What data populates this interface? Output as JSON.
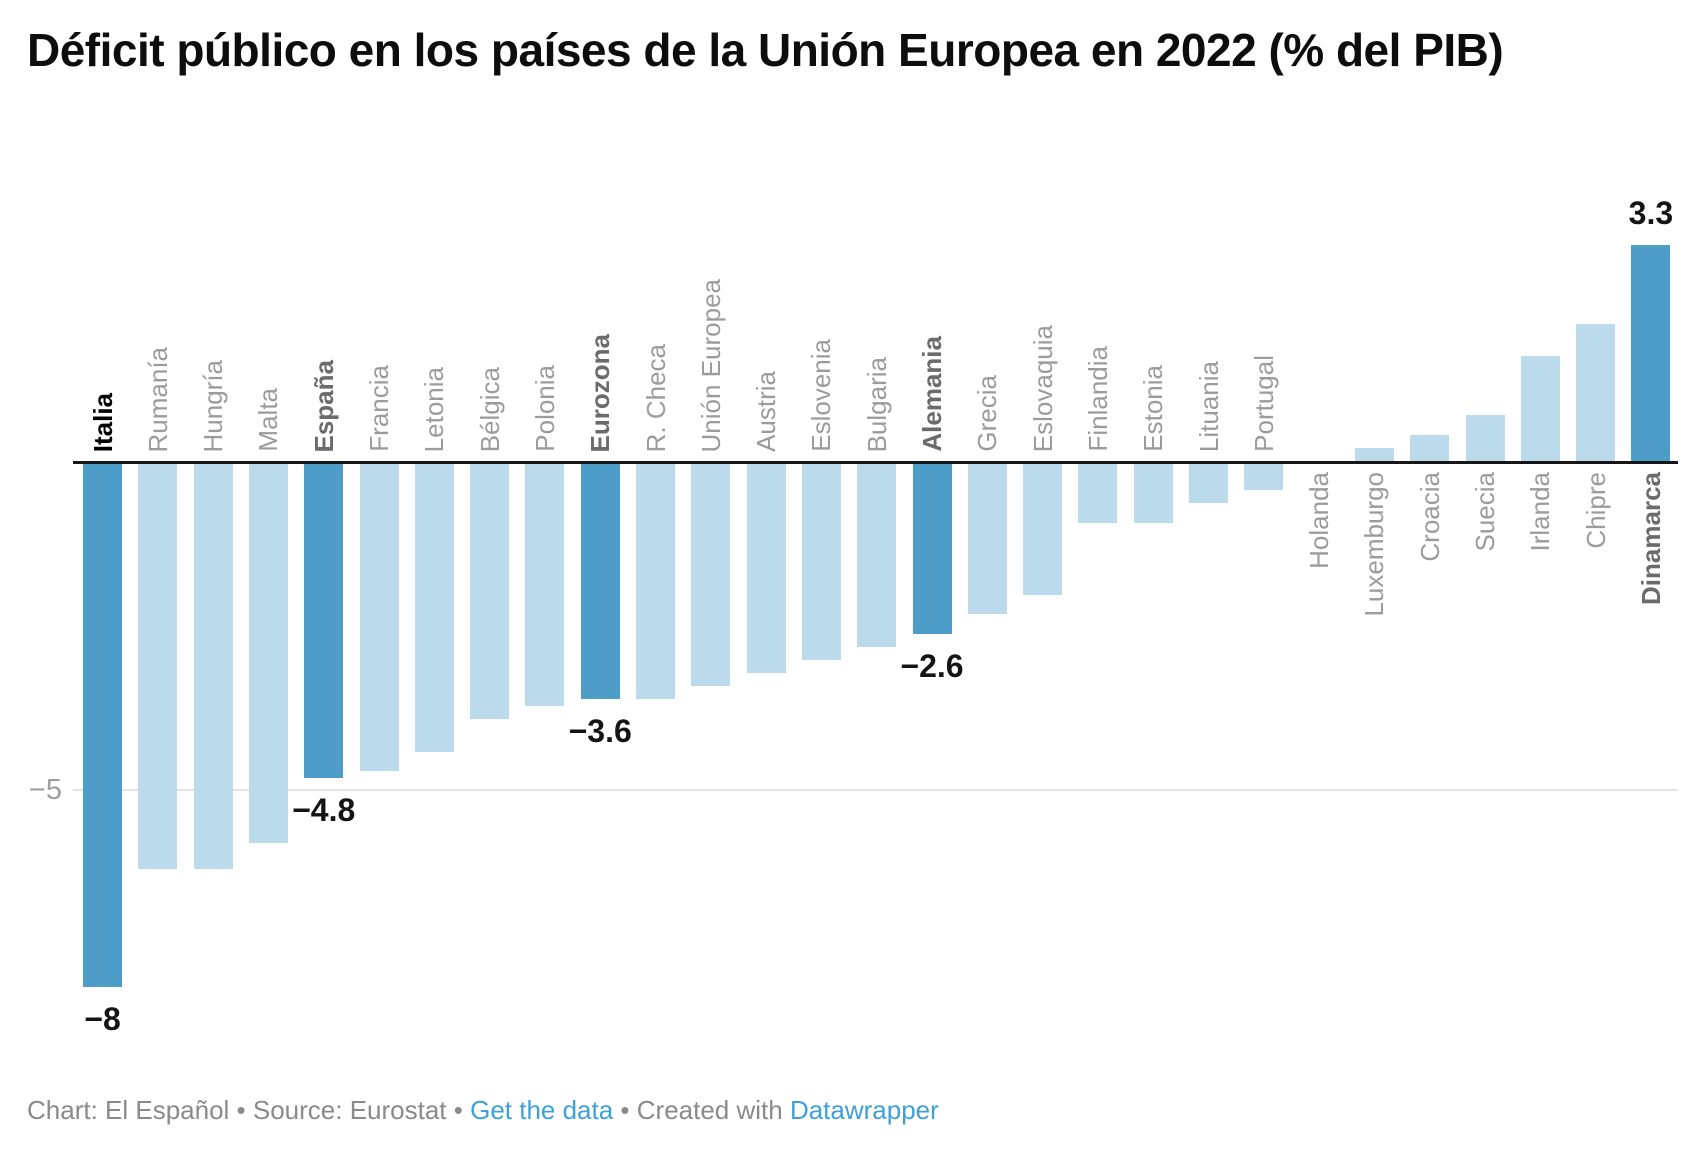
{
  "header": {
    "title": "Déficit público en los países de la Unión Europea en 2022 (% del PIB)"
  },
  "footer": {
    "part1": "Chart: El Español • Source: Eurostat • ",
    "link1": "Get the data",
    "part2": " • Created with ",
    "link2": "Datawrapper"
  },
  "chart_data": {
    "type": "bar",
    "title": "Déficit público en los países de la Unión Europea en 2022 (% del PIB)",
    "xlabel": "",
    "ylabel": "% del PIB",
    "ylim": [
      -8.6,
      3.8
    ],
    "grid": "horizontal",
    "legend_position": "none",
    "axis_ticks": [
      {
        "value": -5,
        "label": "−5"
      }
    ],
    "colors": {
      "bar": "#BBDBEC",
      "bar_highlight": "#4E9CC8",
      "axis": "#161616",
      "gridline": "#E4E4E4",
      "label_gray": "#9B9B9B",
      "label_bold_gray": "#6B6B6B",
      "value_label": "#141414",
      "link_blue": "#3DA0D8"
    },
    "bars": [
      {
        "name": "Italia",
        "value": -8.0,
        "highlight": true,
        "value_label": "−8",
        "name_style": "black"
      },
      {
        "name": "Rumanía",
        "value": -6.2,
        "highlight": false,
        "value_label": "",
        "name_style": "normal"
      },
      {
        "name": "Hungría",
        "value": -6.2,
        "highlight": false,
        "value_label": "",
        "name_style": "normal"
      },
      {
        "name": "Malta",
        "value": -5.8,
        "highlight": false,
        "value_label": "",
        "name_style": "normal"
      },
      {
        "name": "España",
        "value": -4.8,
        "highlight": true,
        "value_label": "−4.8",
        "name_style": "bold"
      },
      {
        "name": "Francia",
        "value": -4.7,
        "highlight": false,
        "value_label": "",
        "name_style": "normal"
      },
      {
        "name": "Letonia",
        "value": -4.4,
        "highlight": false,
        "value_label": "",
        "name_style": "normal"
      },
      {
        "name": "Bélgica",
        "value": -3.9,
        "highlight": false,
        "value_label": "",
        "name_style": "normal"
      },
      {
        "name": "Polonia",
        "value": -3.7,
        "highlight": false,
        "value_label": "",
        "name_style": "normal"
      },
      {
        "name": "Eurozona",
        "value": -3.6,
        "highlight": true,
        "value_label": "−3.6",
        "name_style": "bold"
      },
      {
        "name": "R. Checa",
        "value": -3.6,
        "highlight": false,
        "value_label": "",
        "name_style": "normal"
      },
      {
        "name": "Unión Europea",
        "value": -3.4,
        "highlight": false,
        "value_label": "",
        "name_style": "normal"
      },
      {
        "name": "Austria",
        "value": -3.2,
        "highlight": false,
        "value_label": "",
        "name_style": "normal"
      },
      {
        "name": "Eslovenia",
        "value": -3.0,
        "highlight": false,
        "value_label": "",
        "name_style": "normal"
      },
      {
        "name": "Bulgaria",
        "value": -2.8,
        "highlight": false,
        "value_label": "",
        "name_style": "normal"
      },
      {
        "name": "Alemania",
        "value": -2.6,
        "highlight": true,
        "value_label": "−2.6",
        "name_style": "bold"
      },
      {
        "name": "Grecia",
        "value": -2.3,
        "highlight": false,
        "value_label": "",
        "name_style": "normal"
      },
      {
        "name": "Eslovaquia",
        "value": -2.0,
        "highlight": false,
        "value_label": "",
        "name_style": "normal"
      },
      {
        "name": "Finlandia",
        "value": -0.9,
        "highlight": false,
        "value_label": "",
        "name_style": "normal"
      },
      {
        "name": "Estonia",
        "value": -0.9,
        "highlight": false,
        "value_label": "",
        "name_style": "normal"
      },
      {
        "name": "Lituania",
        "value": -0.6,
        "highlight": false,
        "value_label": "",
        "name_style": "normal"
      },
      {
        "name": "Portugal",
        "value": -0.4,
        "highlight": false,
        "value_label": "",
        "name_style": "normal"
      },
      {
        "name": "Holanda",
        "value": 0.0,
        "highlight": false,
        "value_label": "",
        "name_style": "normal"
      },
      {
        "name": "Luxemburgo",
        "value": 0.2,
        "highlight": false,
        "value_label": "",
        "name_style": "normal"
      },
      {
        "name": "Croacia",
        "value": 0.4,
        "highlight": false,
        "value_label": "",
        "name_style": "normal"
      },
      {
        "name": "Suecia",
        "value": 0.7,
        "highlight": false,
        "value_label": "",
        "name_style": "normal"
      },
      {
        "name": "Irlanda",
        "value": 1.6,
        "highlight": false,
        "value_label": "",
        "name_style": "normal"
      },
      {
        "name": "Chipre",
        "value": 2.1,
        "highlight": false,
        "value_label": "",
        "name_style": "normal"
      },
      {
        "name": "Dinamarca",
        "value": 3.3,
        "highlight": true,
        "value_label": "3.3",
        "name_style": "bold"
      }
    ]
  }
}
